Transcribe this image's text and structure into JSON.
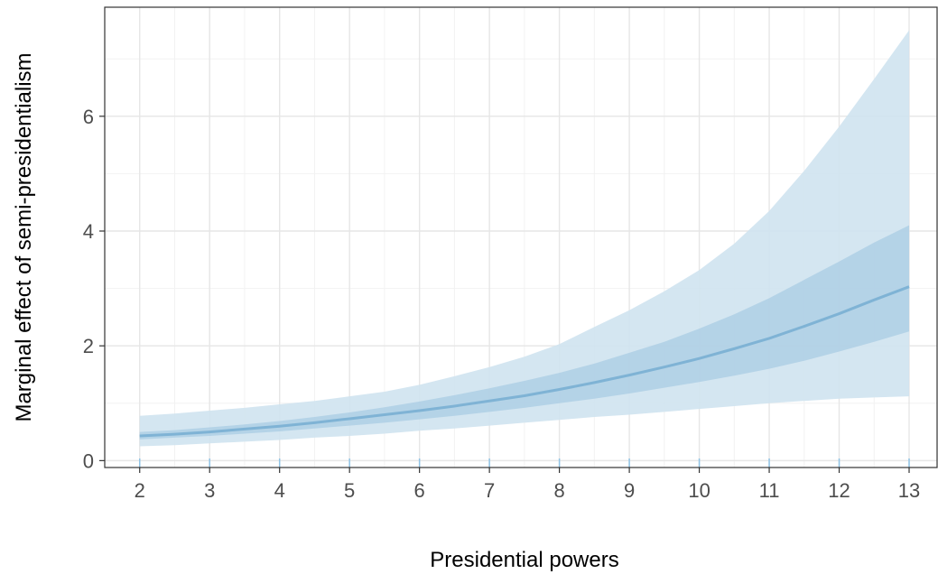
{
  "chart_data": {
    "type": "line",
    "title": "",
    "xlabel": "Presidential powers",
    "ylabel": "Marginal effect of semi-presidentialism",
    "xlim": [
      1.5,
      13.4
    ],
    "ylim": [
      -0.12,
      7.9
    ],
    "x_ticks": [
      2,
      3,
      4,
      5,
      6,
      7,
      8,
      9,
      10,
      11,
      12,
      13
    ],
    "y_ticks": [
      0,
      2,
      4,
      6
    ],
    "grid": true,
    "legend": "none",
    "x": [
      2,
      2.5,
      3,
      3.5,
      4,
      4.5,
      5,
      5.5,
      6,
      6.5,
      7,
      7.5,
      8,
      8.5,
      9,
      9.5,
      10,
      10.5,
      11,
      11.5,
      12,
      12.5,
      13
    ],
    "series": [
      {
        "role": "estimate",
        "color": "#7fb3d5",
        "values": [
          0.43,
          0.46,
          0.5,
          0.55,
          0.6,
          0.66,
          0.73,
          0.8,
          0.87,
          0.95,
          1.04,
          1.13,
          1.24,
          1.36,
          1.49,
          1.63,
          1.78,
          1.95,
          2.13,
          2.34,
          2.56,
          2.8,
          3.03
        ]
      },
      {
        "role": "inner-band",
        "color": "#a6cbe3",
        "lower": [
          0.37,
          0.4,
          0.43,
          0.47,
          0.51,
          0.56,
          0.61,
          0.66,
          0.72,
          0.78,
          0.85,
          0.92,
          1.0,
          1.08,
          1.17,
          1.27,
          1.37,
          1.48,
          1.6,
          1.74,
          1.9,
          2.07,
          2.25
        ],
        "upper": [
          0.5,
          0.53,
          0.58,
          0.63,
          0.69,
          0.76,
          0.84,
          0.93,
          1.03,
          1.14,
          1.26,
          1.39,
          1.53,
          1.69,
          1.88,
          2.07,
          2.3,
          2.55,
          2.83,
          3.15,
          3.47,
          3.8,
          4.1
        ]
      },
      {
        "role": "outer-band",
        "color": "#cfe3f0",
        "lower": [
          0.25,
          0.27,
          0.3,
          0.33,
          0.36,
          0.4,
          0.43,
          0.47,
          0.52,
          0.56,
          0.61,
          0.66,
          0.71,
          0.76,
          0.8,
          0.85,
          0.9,
          0.95,
          1.0,
          1.04,
          1.08,
          1.1,
          1.12
        ],
        "upper": [
          0.78,
          0.82,
          0.87,
          0.92,
          0.98,
          1.04,
          1.12,
          1.2,
          1.32,
          1.47,
          1.63,
          1.81,
          2.03,
          2.33,
          2.62,
          2.95,
          3.32,
          3.78,
          4.35,
          5.05,
          5.82,
          6.65,
          7.5
        ]
      }
    ]
  }
}
